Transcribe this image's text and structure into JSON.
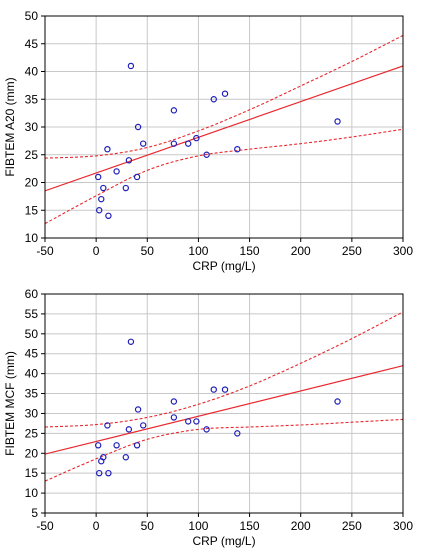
{
  "chart_data": [
    {
      "type": "scatter",
      "xlabel": "CRP (mg/L)",
      "ylabel": "FIBTEM A20 (mm)",
      "xlim": [
        -50,
        300
      ],
      "ylim": [
        10,
        50
      ],
      "xticks": [
        -50,
        0,
        50,
        100,
        150,
        200,
        250,
        300
      ],
      "yticks": [
        10,
        15,
        20,
        25,
        30,
        35,
        40,
        45,
        50
      ],
      "grid": true,
      "colors": {
        "points": "#1f1fb8",
        "fit": "#e8282e",
        "frame": "#000000",
        "grid": "#c8c8c8"
      },
      "points": [
        {
          "x": 2,
          "y": 21
        },
        {
          "x": 3,
          "y": 15
        },
        {
          "x": 5,
          "y": 17
        },
        {
          "x": 7,
          "y": 19
        },
        {
          "x": 11,
          "y": 26
        },
        {
          "x": 12,
          "y": 14
        },
        {
          "x": 20,
          "y": 22
        },
        {
          "x": 29,
          "y": 19
        },
        {
          "x": 32,
          "y": 24
        },
        {
          "x": 34,
          "y": 41
        },
        {
          "x": 40,
          "y": 21
        },
        {
          "x": 41,
          "y": 30
        },
        {
          "x": 46,
          "y": 27
        },
        {
          "x": 76,
          "y": 27
        },
        {
          "x": 76,
          "y": 33
        },
        {
          "x": 90,
          "y": 27
        },
        {
          "x": 98,
          "y": 28
        },
        {
          "x": 108,
          "y": 25
        },
        {
          "x": 115,
          "y": 35
        },
        {
          "x": 126,
          "y": 36
        },
        {
          "x": 138,
          "y": 26
        },
        {
          "x": 236,
          "y": 31
        }
      ],
      "fit": {
        "x": [
          -50,
          300
        ],
        "y": [
          18.5,
          41
        ]
      },
      "ci_upper": [
        {
          "x": -50,
          "y": 24.4
        },
        {
          "x": 0,
          "y": 24.8
        },
        {
          "x": 50,
          "y": 26.3
        },
        {
          "x": 100,
          "y": 29.3
        },
        {
          "x": 150,
          "y": 33.1
        },
        {
          "x": 200,
          "y": 37.4
        },
        {
          "x": 250,
          "y": 41.8
        },
        {
          "x": 300,
          "y": 46.5
        }
      ],
      "ci_lower": [
        {
          "x": -50,
          "y": 12.6
        },
        {
          "x": 0,
          "y": 17.6
        },
        {
          "x": 50,
          "y": 22.2
        },
        {
          "x": 100,
          "y": 24.8
        },
        {
          "x": 150,
          "y": 26.0
        },
        {
          "x": 200,
          "y": 27.0
        },
        {
          "x": 250,
          "y": 28.2
        },
        {
          "x": 300,
          "y": 29.6
        }
      ]
    },
    {
      "type": "scatter",
      "xlabel": "CRP (mg/L)",
      "ylabel": "FIBTEM MCF (mm)",
      "xlim": [
        -50,
        300
      ],
      "ylim": [
        5,
        60
      ],
      "xticks": [
        -50,
        0,
        50,
        100,
        150,
        200,
        250,
        300
      ],
      "yticks": [
        5,
        10,
        15,
        20,
        25,
        30,
        35,
        40,
        45,
        50,
        55,
        60
      ],
      "grid": true,
      "colors": {
        "points": "#1f1fb8",
        "fit": "#e8282e",
        "frame": "#000000",
        "grid": "#c8c8c8"
      },
      "points": [
        {
          "x": 2,
          "y": 22
        },
        {
          "x": 3,
          "y": 15
        },
        {
          "x": 5,
          "y": 18
        },
        {
          "x": 7,
          "y": 19
        },
        {
          "x": 11,
          "y": 27
        },
        {
          "x": 12,
          "y": 15
        },
        {
          "x": 20,
          "y": 22
        },
        {
          "x": 29,
          "y": 19
        },
        {
          "x": 32,
          "y": 26
        },
        {
          "x": 34,
          "y": 48
        },
        {
          "x": 40,
          "y": 22
        },
        {
          "x": 41,
          "y": 31
        },
        {
          "x": 46,
          "y": 27
        },
        {
          "x": 76,
          "y": 29
        },
        {
          "x": 76,
          "y": 33
        },
        {
          "x": 90,
          "y": 28
        },
        {
          "x": 98,
          "y": 28
        },
        {
          "x": 108,
          "y": 26
        },
        {
          "x": 115,
          "y": 36
        },
        {
          "x": 126,
          "y": 36
        },
        {
          "x": 138,
          "y": 25
        },
        {
          "x": 236,
          "y": 33
        }
      ],
      "fit": {
        "x": [
          -50,
          300
        ],
        "y": [
          19.8,
          42
        ]
      },
      "ci_upper": [
        {
          "x": -50,
          "y": 26.6
        },
        {
          "x": 0,
          "y": 27.2
        },
        {
          "x": 50,
          "y": 29.0
        },
        {
          "x": 100,
          "y": 32.3
        },
        {
          "x": 150,
          "y": 36.9
        },
        {
          "x": 200,
          "y": 42.6
        },
        {
          "x": 250,
          "y": 48.8
        },
        {
          "x": 300,
          "y": 55.5
        }
      ],
      "ci_lower": [
        {
          "x": -50,
          "y": 13.0
        },
        {
          "x": 0,
          "y": 18.6
        },
        {
          "x": 50,
          "y": 23.5
        },
        {
          "x": 100,
          "y": 26.0
        },
        {
          "x": 150,
          "y": 26.6
        },
        {
          "x": 200,
          "y": 27.1
        },
        {
          "x": 250,
          "y": 27.8
        },
        {
          "x": 300,
          "y": 28.5
        }
      ]
    }
  ]
}
